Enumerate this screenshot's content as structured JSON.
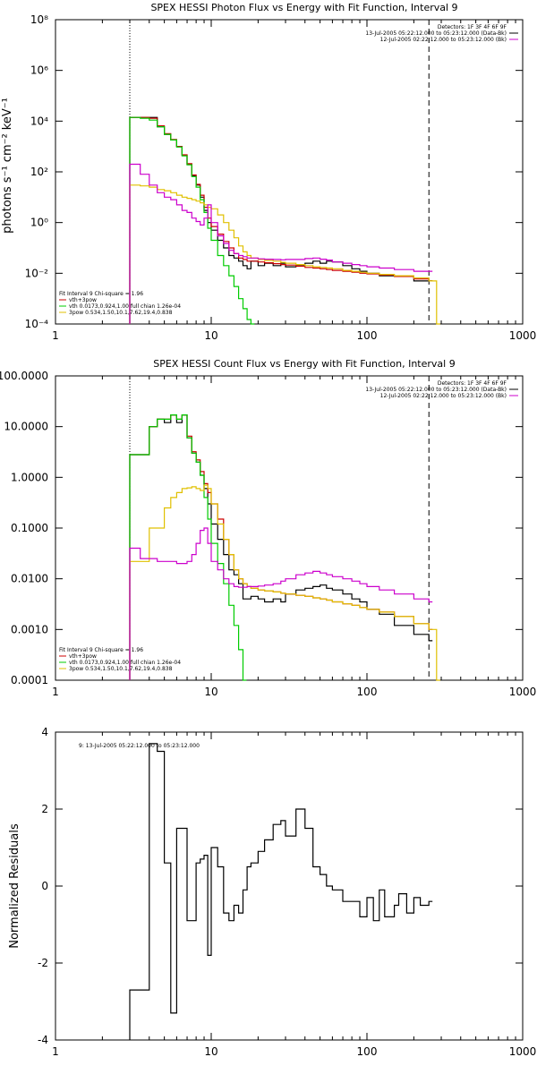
{
  "chart_data": [
    {
      "type": "line",
      "title": "SPEX HESSI Photon Flux vs Energy with Fit Function, Interval 9",
      "ylabel": "photons s⁻¹ cm⁻² keV⁻¹",
      "xscale": "log",
      "yscale": "log",
      "xlim": [
        1,
        1000
      ],
      "ylim": [
        0.0001,
        100000000
      ],
      "x_ticks": [
        "1",
        "10",
        "100",
        "1000"
      ],
      "y_ticks": [
        "10⁻⁴",
        "10⁻²",
        "10⁰",
        "10²",
        "10⁴",
        "10⁶",
        "10⁸"
      ],
      "vertical_lines": [
        {
          "x": 3,
          "style": "dotted"
        },
        {
          "x": 250,
          "style": "dashed"
        }
      ],
      "legend_top_right": [
        {
          "text": "Detectors: 1F 3F 4F 6F 9F",
          "color": "#000000"
        },
        {
          "text": "13-Jul-2005 05:22:12.000 to 05:23:12.000 (Data-Bk)",
          "color": "#000000"
        },
        {
          "text": "12-Jul-2005 02:22:12.000 to 05:23:12.000 (Bk)",
          "color": "#cc00cc"
        }
      ],
      "legend_bottom_left": [
        {
          "text": "Fit Interval 9   Chi-square = 1.96",
          "color": "#000000"
        },
        {
          "text": "vth+3pow",
          "color": "#cc0000"
        },
        {
          "text": "vth 0.0173,0.924,1.00  full chian 1.26e-04",
          "color": "#00cc00"
        },
        {
          "text": "3pow 0.534,1.50,10.1,7.62,19.4,0.838",
          "color": "#e0c000"
        }
      ],
      "series": [
        {
          "name": "Data-Bk",
          "color": "#000000",
          "x": [
            3,
            3.5,
            4,
            4.5,
            5,
            5.5,
            6,
            6.5,
            7,
            7.5,
            8,
            8.5,
            9,
            9.5,
            10,
            11,
            12,
            13,
            14,
            15,
            16,
            17,
            18,
            20,
            22,
            25,
            28,
            30,
            35,
            40,
            45,
            50,
            55,
            60,
            70,
            80,
            90,
            100,
            120,
            150,
            200,
            250
          ],
          "y": [
            14000,
            14000,
            14000,
            6000,
            3000,
            1800,
            1000,
            450,
            200,
            70,
            30,
            10,
            3,
            1,
            0.5,
            0.2,
            0.1,
            0.05,
            0.04,
            0.03,
            0.02,
            0.015,
            0.03,
            0.02,
            0.025,
            0.02,
            0.025,
            0.018,
            0.02,
            0.025,
            0.03,
            0.025,
            0.03,
            0.028,
            0.02,
            0.015,
            0.012,
            0.01,
            0.008,
            0.008,
            0.005,
            0.005
          ]
        },
        {
          "name": "vth+3pow",
          "color": "#cc0000",
          "x": [
            3,
            3.5,
            4,
            4.5,
            5,
            5.5,
            6,
            6.5,
            7,
            7.5,
            8,
            8.5,
            9,
            9.5,
            10,
            11,
            12,
            13,
            14,
            15,
            16,
            17,
            18,
            20,
            22,
            25,
            28,
            30,
            35,
            40,
            45,
            50,
            55,
            60,
            70,
            80,
            90,
            100,
            120,
            150,
            200,
            250
          ],
          "y": [
            14000,
            14000,
            13000,
            6500,
            3200,
            1900,
            1000,
            470,
            210,
            75,
            32,
            12,
            4,
            1.5,
            0.7,
            0.35,
            0.18,
            0.1,
            0.06,
            0.04,
            0.035,
            0.03,
            0.03,
            0.028,
            0.026,
            0.024,
            0.022,
            0.021,
            0.019,
            0.017,
            0.016,
            0.015,
            0.014,
            0.013,
            0.012,
            0.011,
            0.01,
            0.0095,
            0.0085,
            0.0075,
            0.006,
            0.005
          ]
        },
        {
          "name": "vth",
          "color": "#00cc00",
          "x": [
            3,
            3.5,
            4,
            4.5,
            5,
            5.5,
            6,
            6.5,
            7,
            7.5,
            8,
            8.5,
            9,
            9.5,
            10,
            11,
            12,
            13,
            14,
            15,
            16,
            17,
            18
          ],
          "y": [
            14000,
            13000,
            11000,
            6000,
            3000,
            1800,
            950,
            430,
            190,
            65,
            25,
            8,
            2.5,
            0.6,
            0.2,
            0.05,
            0.02,
            0.008,
            0.003,
            0.001,
            0.0004,
            0.00015,
            0.0001
          ]
        },
        {
          "name": "3pow",
          "color": "#e0c000",
          "x": [
            3,
            3.5,
            4,
            4.5,
            5,
            5.5,
            6,
            6.5,
            7,
            7.5,
            8,
            8.5,
            9,
            9.5,
            10,
            11,
            12,
            13,
            14,
            15,
            16,
            17,
            18,
            20,
            22,
            25,
            28,
            30,
            35,
            40,
            45,
            50,
            55,
            60,
            70,
            80,
            90,
            100,
            120,
            150,
            200,
            250,
            280
          ],
          "y": [
            30,
            28,
            25,
            20,
            18,
            15,
            12,
            10,
            9,
            8,
            7,
            6,
            5,
            4,
            3.5,
            2,
            1,
            0.5,
            0.25,
            0.12,
            0.07,
            0.05,
            0.04,
            0.035,
            0.032,
            0.03,
            0.027,
            0.025,
            0.022,
            0.02,
            0.018,
            0.017,
            0.016,
            0.015,
            0.013,
            0.012,
            0.011,
            0.01,
            0.009,
            0.008,
            0.0065,
            0.005,
            0.0001
          ]
        },
        {
          "name": "Bk",
          "color": "#cc00cc",
          "x": [
            3,
            3.5,
            4,
            4.5,
            5,
            5.5,
            6,
            6.5,
            7,
            7.5,
            8,
            8.5,
            9,
            9.5,
            10,
            11,
            12,
            13,
            14,
            15,
            16,
            17,
            18,
            20,
            22,
            25,
            28,
            30,
            35,
            40,
            45,
            50,
            55,
            60,
            70,
            80,
            90,
            100,
            120,
            150,
            200,
            250
          ],
          "y": [
            200,
            80,
            30,
            15,
            10,
            8,
            5,
            3,
            2.5,
            1.5,
            1.1,
            0.8,
            1.5,
            5,
            1,
            0.3,
            0.15,
            0.08,
            0.06,
            0.05,
            0.045,
            0.04,
            0.04,
            0.037,
            0.036,
            0.035,
            0.034,
            0.035,
            0.035,
            0.038,
            0.04,
            0.036,
            0.033,
            0.028,
            0.025,
            0.022,
            0.02,
            0.018,
            0.016,
            0.014,
            0.012,
            0.012
          ]
        }
      ]
    },
    {
      "type": "line",
      "title": "SPEX HESSI Count Flux vs Energy with Fit Function, Interval 9",
      "xscale": "log",
      "yscale": "log",
      "xlim": [
        1,
        1000
      ],
      "ylim": [
        0.0001,
        100
      ],
      "x_ticks": [
        "1",
        "10",
        "100",
        "1000"
      ],
      "y_ticks": [
        "0.0001",
        "0.0010",
        "0.0100",
        "0.1000",
        "1.0000",
        "10.0000",
        "100.0000"
      ],
      "vertical_lines": [
        {
          "x": 3,
          "style": "dotted"
        },
        {
          "x": 250,
          "style": "dashed"
        }
      ],
      "legend_top_right": [
        {
          "text": "Detectors: 1F 3F 4F 6F 9F",
          "color": "#000000"
        },
        {
          "text": "13-Jul-2005 05:22:12.000 to 05:23:12.000 (Data-Bk)",
          "color": "#000000"
        },
        {
          "text": "12-Jul-2005 02:22:12.000 to 05:23:12.000 (Bk)",
          "color": "#cc00cc"
        }
      ],
      "legend_bottom_left": [
        {
          "text": "Fit Interval 9   Chi-square = 1.96",
          "color": "#000000"
        },
        {
          "text": "vth+3pow",
          "color": "#cc0000"
        },
        {
          "text": "vth 0.0173,0.924,1.00  full chian 1.26e-04",
          "color": "#00cc00"
        },
        {
          "text": "3pow 0.534,1.50,10.1,7.62,19.4,0.838",
          "color": "#e0c000"
        }
      ],
      "series": [
        {
          "name": "Data-Bk",
          "color": "#000000",
          "x": [
            3,
            3.5,
            4,
            4.5,
            5,
            5.5,
            6,
            6.5,
            7,
            7.5,
            8,
            8.5,
            9,
            9.5,
            10,
            11,
            12,
            13,
            14,
            15,
            16,
            17,
            18,
            20,
            22,
            25,
            28,
            30,
            35,
            40,
            45,
            50,
            55,
            60,
            70,
            80,
            90,
            100,
            120,
            150,
            200,
            250
          ],
          "y": [
            2.8,
            2.8,
            10,
            14,
            12,
            17,
            12,
            17,
            6,
            3,
            2,
            1.1,
            0.6,
            0.3,
            0.12,
            0.06,
            0.03,
            0.015,
            0.012,
            0.008,
            0.004,
            0.004,
            0.0045,
            0.004,
            0.0035,
            0.004,
            0.0035,
            0.005,
            0.006,
            0.0065,
            0.007,
            0.0075,
            0.0065,
            0.006,
            0.005,
            0.004,
            0.0035,
            0.0025,
            0.002,
            0.0012,
            0.0008,
            0.0006
          ]
        },
        {
          "name": "vth+3pow",
          "color": "#cc0000",
          "x": [
            3,
            3.5,
            4,
            4.5,
            5,
            5.5,
            6,
            6.5,
            7,
            7.5,
            8,
            8.5,
            9,
            9.5,
            10,
            11,
            12,
            13,
            14,
            15,
            16,
            17,
            18,
            20,
            22,
            25,
            28,
            30,
            35,
            40,
            45,
            50,
            55,
            60,
            70,
            80,
            90,
            100,
            120,
            150,
            200,
            250
          ],
          "y": [
            2.8,
            2.8,
            10,
            14,
            14,
            17,
            14,
            17,
            6.5,
            3.2,
            2.2,
            1.3,
            0.75,
            0.5,
            0.3,
            0.15,
            0.06,
            0.03,
            0.015,
            0.01,
            0.008,
            0.007,
            0.0065,
            0.006,
            0.0058,
            0.0055,
            0.0052,
            0.005,
            0.0047,
            0.0045,
            0.0042,
            0.004,
            0.0038,
            0.0035,
            0.0032,
            0.003,
            0.0027,
            0.0025,
            0.0022,
            0.0018,
            0.0013,
            0.001
          ]
        },
        {
          "name": "vth",
          "color": "#00cc00",
          "x": [
            3,
            3.5,
            4,
            4.5,
            5,
            5.5,
            6,
            6.5,
            7,
            7.5,
            8,
            8.5,
            9,
            9.5,
            10,
            11,
            12,
            13,
            14,
            15,
            16
          ],
          "y": [
            2.8,
            2.8,
            10,
            14,
            14,
            17,
            14,
            17,
            6,
            3,
            2,
            1.1,
            0.4,
            0.15,
            0.05,
            0.02,
            0.008,
            0.003,
            0.0012,
            0.0004,
            0.0001
          ]
        },
        {
          "name": "3pow",
          "color": "#e0c000",
          "x": [
            3,
            3.5,
            4,
            4.5,
            5,
            5.5,
            6,
            6.5,
            7,
            7.5,
            8,
            8.5,
            9,
            9.5,
            10,
            11,
            12,
            13,
            14,
            15,
            16,
            17,
            18,
            20,
            22,
            25,
            28,
            30,
            35,
            40,
            45,
            50,
            55,
            60,
            70,
            80,
            90,
            100,
            120,
            150,
            200,
            250,
            280
          ],
          "y": [
            0.022,
            0.022,
            0.1,
            0.1,
            0.25,
            0.4,
            0.5,
            0.6,
            0.62,
            0.65,
            0.6,
            0.55,
            0.7,
            0.6,
            0.3,
            0.12,
            0.06,
            0.03,
            0.015,
            0.01,
            0.008,
            0.007,
            0.0065,
            0.006,
            0.0058,
            0.0055,
            0.0052,
            0.005,
            0.0047,
            0.0045,
            0.0042,
            0.004,
            0.0038,
            0.0035,
            0.0032,
            0.003,
            0.0027,
            0.0025,
            0.0022,
            0.0018,
            0.0013,
            0.001,
            0.0001
          ]
        },
        {
          "name": "Bk",
          "color": "#cc00cc",
          "x": [
            3,
            3.5,
            4,
            4.5,
            5,
            5.5,
            6,
            6.5,
            7,
            7.5,
            8,
            8.5,
            9,
            9.5,
            10,
            11,
            12,
            13,
            14,
            15,
            16,
            17,
            18,
            20,
            22,
            25,
            28,
            30,
            35,
            40,
            45,
            50,
            55,
            60,
            70,
            80,
            90,
            100,
            120,
            150,
            200,
            250
          ],
          "y": [
            0.04,
            0.025,
            0.025,
            0.022,
            0.022,
            0.022,
            0.02,
            0.02,
            0.022,
            0.03,
            0.05,
            0.09,
            0.1,
            0.05,
            0.022,
            0.015,
            0.01,
            0.008,
            0.007,
            0.0068,
            0.0068,
            0.007,
            0.007,
            0.0072,
            0.0075,
            0.008,
            0.009,
            0.01,
            0.012,
            0.013,
            0.014,
            0.013,
            0.012,
            0.011,
            0.01,
            0.009,
            0.008,
            0.007,
            0.006,
            0.005,
            0.004,
            0.0035
          ]
        }
      ]
    },
    {
      "type": "line",
      "title": "",
      "ylabel": "Normalized Residuals",
      "xscale": "log",
      "yscale": "linear",
      "xlim": [
        1,
        1000
      ],
      "ylim": [
        -4,
        4
      ],
      "x_ticks": [
        "1",
        "10",
        "100",
        "1000"
      ],
      "y_ticks": [
        "-4",
        "-2",
        "0",
        "2",
        "4"
      ],
      "annotation": "9: 13-Jul-2005 05:22:12.000 to 05:23:12.000",
      "series": [
        {
          "name": "Residuals",
          "color": "#000000",
          "x": [
            3,
            3.5,
            4,
            4.5,
            5,
            5.5,
            6,
            6.5,
            7,
            7.5,
            8,
            8.5,
            9,
            9.5,
            10,
            11,
            12,
            13,
            14,
            15,
            16,
            17,
            18,
            20,
            22,
            25,
            28,
            30,
            35,
            40,
            45,
            50,
            55,
            60,
            70,
            80,
            90,
            100,
            110,
            120,
            130,
            140,
            150,
            160,
            180,
            200,
            220,
            250
          ],
          "y": [
            -2.7,
            -2.7,
            3.7,
            3.5,
            0.6,
            -3.3,
            1.5,
            1.5,
            -0.9,
            -0.9,
            0.6,
            0.7,
            0.8,
            -1.8,
            1.0,
            0.5,
            -0.7,
            -0.9,
            -0.5,
            -0.7,
            -0.1,
            0.5,
            0.6,
            0.9,
            1.2,
            1.6,
            1.7,
            1.3,
            2.0,
            1.5,
            0.5,
            0.3,
            0.0,
            -0.1,
            -0.4,
            -0.4,
            -0.8,
            -0.3,
            -0.9,
            -0.1,
            -0.8,
            -0.8,
            -0.5,
            -0.2,
            -0.7,
            -0.3,
            -0.5,
            -0.4
          ]
        }
      ]
    }
  ]
}
